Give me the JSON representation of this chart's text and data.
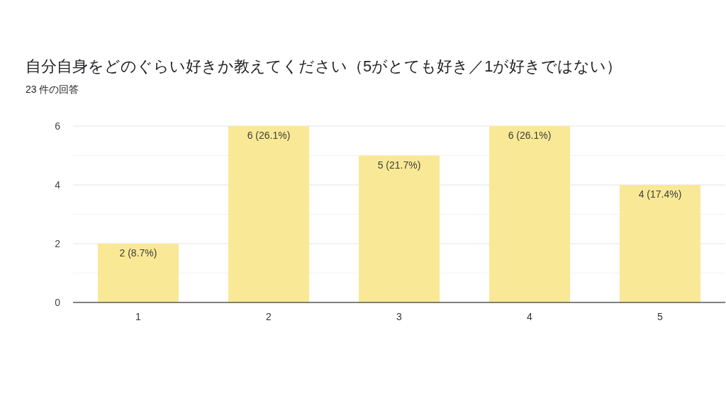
{
  "chart_data": {
    "type": "bar",
    "title": "自分自身をどのぐらい好きか教えてください（5がとても好き／1が好きではない）",
    "subtitle": "23 件の回答",
    "categories": [
      "1",
      "2",
      "3",
      "4",
      "5"
    ],
    "values": [
      2,
      6,
      5,
      6,
      4
    ],
    "color": "#f9e996",
    "value_labels": [
      "2 (8.7%)",
      "6 (26.1%)",
      "5 (21.7%)",
      "6 (26.1%)",
      "4 (17.4%)"
    ],
    "ylim": [
      0,
      6
    ],
    "yticks": [
      0,
      {
        "value": 1,
        "label": null
      },
      2,
      {
        "value": 3,
        "label": null
      },
      4,
      {
        "value": 5,
        "label": null
      },
      6
    ],
    "grid": "y"
  }
}
